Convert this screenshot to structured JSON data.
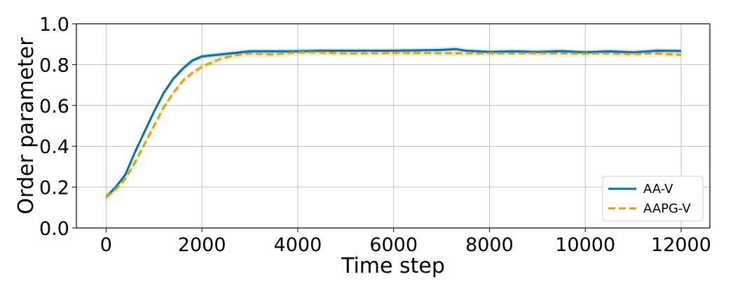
{
  "chart_data": {
    "type": "line",
    "xlabel": "Time step",
    "ylabel": "Order parameter",
    "xlim": [
      -620,
      12600
    ],
    "ylim": [
      0.0,
      1.0
    ],
    "xticks": [
      0,
      2000,
      4000,
      6000,
      8000,
      10000,
      12000
    ],
    "yticks": [
      0.0,
      0.2,
      0.4,
      0.6,
      0.8,
      1.0
    ],
    "xtick_labels": [
      "0",
      "2000",
      "4000",
      "6000",
      "8000",
      "10000",
      "12000"
    ],
    "ytick_labels": [
      "0.0",
      "0.2",
      "0.4",
      "0.6",
      "0.8",
      "1.0"
    ],
    "grid": true,
    "legend_position": "bottom-right",
    "series": [
      {
        "name": "AA-V",
        "color": "#0072b2",
        "style": "solid",
        "band": 0.012,
        "x": [
          0,
          200,
          400,
          600,
          800,
          1000,
          1200,
          1400,
          1600,
          1800,
          2000,
          2200,
          2400,
          2600,
          2800,
          3000,
          3500,
          4000,
          4500,
          5000,
          5500,
          6000,
          6500,
          7000,
          7300,
          7500,
          8000,
          8500,
          9000,
          9500,
          10000,
          10500,
          11000,
          11500,
          12000
        ],
        "y": [
          0.15,
          0.2,
          0.26,
          0.37,
          0.47,
          0.57,
          0.66,
          0.73,
          0.78,
          0.82,
          0.84,
          0.845,
          0.85,
          0.855,
          0.86,
          0.865,
          0.865,
          0.865,
          0.868,
          0.868,
          0.868,
          0.868,
          0.87,
          0.872,
          0.876,
          0.868,
          0.862,
          0.865,
          0.862,
          0.866,
          0.86,
          0.865,
          0.86,
          0.868,
          0.867
        ]
      },
      {
        "name": "AAPG-V",
        "color": "#e69f00",
        "style": "dashed",
        "band": 0.015,
        "x": [
          0,
          200,
          400,
          600,
          800,
          1000,
          1200,
          1400,
          1600,
          1800,
          2000,
          2200,
          2400,
          2600,
          2800,
          3000,
          3500,
          4000,
          4500,
          5000,
          5500,
          6000,
          6500,
          7000,
          7500,
          8000,
          8500,
          9000,
          9500,
          10000,
          10500,
          11000,
          11500,
          12000
        ],
        "y": [
          0.15,
          0.19,
          0.24,
          0.32,
          0.41,
          0.5,
          0.59,
          0.66,
          0.72,
          0.76,
          0.79,
          0.81,
          0.83,
          0.84,
          0.85,
          0.855,
          0.85,
          0.86,
          0.86,
          0.855,
          0.855,
          0.857,
          0.857,
          0.856,
          0.855,
          0.856,
          0.855,
          0.856,
          0.855,
          0.854,
          0.855,
          0.852,
          0.855,
          0.848
        ]
      }
    ]
  }
}
